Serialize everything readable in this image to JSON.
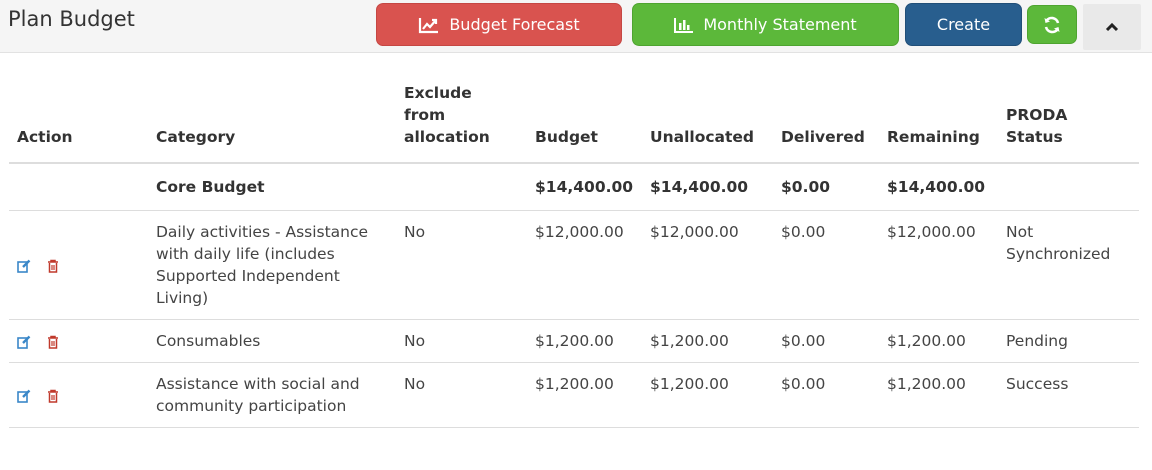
{
  "header": {
    "title": "Plan Budget",
    "buttons": {
      "forecast": "Budget Forecast",
      "statement": "Monthly Statement",
      "create": "Create"
    }
  },
  "colors": {
    "forecast": "#d9534f",
    "statement": "#5cb83a",
    "create": "#285e8e",
    "edit_icon": "#3a87c8",
    "delete_icon": "#c0392b"
  },
  "icons": {
    "forecast": "chart-line-icon",
    "statement": "bar-chart-icon",
    "refresh": "refresh-icon",
    "collapse": "chevron-up-icon",
    "edit": "edit-icon",
    "delete": "trash-icon"
  },
  "table": {
    "columns": {
      "action": "Action",
      "category": "Category",
      "exclude": [
        "Exclude",
        "from",
        "allocation"
      ],
      "budget": "Budget",
      "unallocated": "Unallocated",
      "delivered": "Delivered",
      "remaining": "Remaining",
      "proda": [
        "PRODA",
        "Status"
      ]
    },
    "core": {
      "category": "Core Budget",
      "budget": "$14,400.00",
      "unallocated": "$14,400.00",
      "delivered": "$0.00",
      "remaining": "$14,400.00"
    },
    "rows": [
      {
        "category": "Daily activities - Assistance with daily life (includes Supported Independent Living)",
        "exclude": "No",
        "budget": "$12,000.00",
        "unallocated": "$12,000.00",
        "delivered": "$0.00",
        "remaining": "$12,000.00",
        "status": "Not Synchronized"
      },
      {
        "category": "Consumables",
        "exclude": "No",
        "budget": "$1,200.00",
        "unallocated": "$1,200.00",
        "delivered": "$0.00",
        "remaining": "$1,200.00",
        "status": "Pending"
      },
      {
        "category": "Assistance with social and community participation",
        "exclude": "No",
        "budget": "$1,200.00",
        "unallocated": "$1,200.00",
        "delivered": "$0.00",
        "remaining": "$1,200.00",
        "status": "Success"
      }
    ]
  }
}
